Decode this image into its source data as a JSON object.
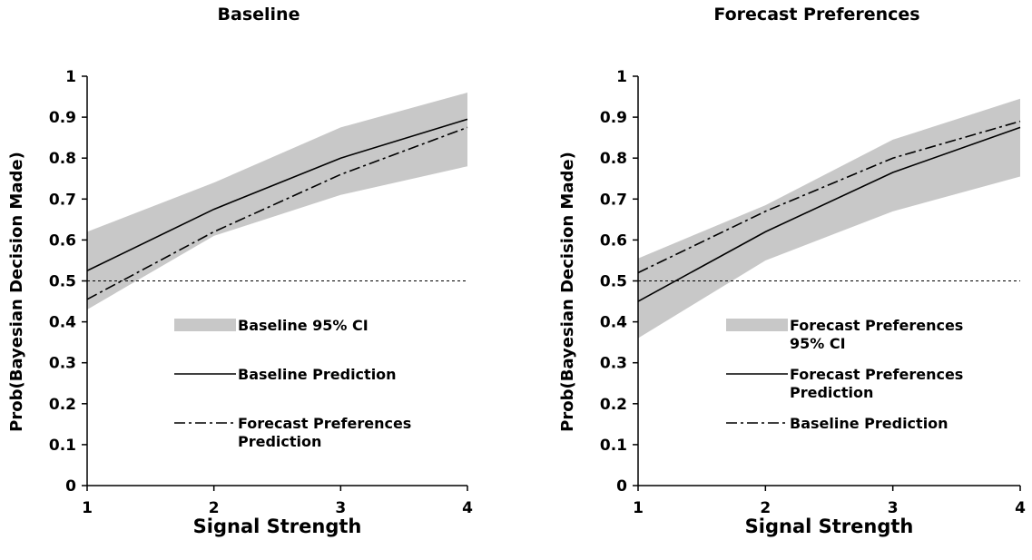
{
  "chart_data": [
    {
      "type": "line",
      "title": "Baseline",
      "xlabel": "Signal Strength",
      "ylabel": "Prob(Bayesian Decision Made)",
      "x": [
        1,
        2,
        3,
        4
      ],
      "xlim": [
        1,
        4
      ],
      "ylim": [
        0,
        1
      ],
      "x_ticks": [
        "1",
        "2",
        "3",
        "4"
      ],
      "y_ticks": [
        "0",
        "0.1",
        "0.2",
        "0.3",
        "0.4",
        "0.5",
        "0.6",
        "0.7",
        "0.8",
        "0.9",
        "1"
      ],
      "reference_line": 0.5,
      "band": {
        "name": "Baseline 95% CI",
        "lower": [
          0.43,
          0.61,
          0.71,
          0.78
        ],
        "upper": [
          0.62,
          0.74,
          0.875,
          0.96
        ],
        "color": "#c8c8c8"
      },
      "series": [
        {
          "name": "Baseline Prediction",
          "style": "solid",
          "values": [
            0.525,
            0.675,
            0.8,
            0.895
          ]
        },
        {
          "name": "Forecast Preferences Prediction",
          "style": "dashdot",
          "values": [
            0.455,
            0.62,
            0.76,
            0.875
          ]
        }
      ],
      "legend": [
        {
          "type": "band",
          "lines": [
            "Baseline 95% CI"
          ]
        },
        {
          "type": "solid",
          "lines": [
            "Baseline Prediction"
          ]
        },
        {
          "type": "dashdot",
          "lines": [
            "Forecast Preferences",
            "Prediction"
          ]
        }
      ],
      "legend_position": "lower-right",
      "grid": false
    },
    {
      "type": "line",
      "title": "Forecast Preferences",
      "xlabel": "Signal Strength",
      "ylabel": "Prob(Bayesian Decision Made)",
      "x": [
        1,
        2,
        3,
        4
      ],
      "xlim": [
        1,
        4
      ],
      "ylim": [
        0,
        1
      ],
      "x_ticks": [
        "1",
        "2",
        "3",
        "4"
      ],
      "y_ticks": [
        "0",
        "0.1",
        "0.2",
        "0.3",
        "0.4",
        "0.5",
        "0.6",
        "0.7",
        "0.8",
        "0.9",
        "1"
      ],
      "reference_line": 0.5,
      "band": {
        "name": "Forecast Preferences 95% CI",
        "lower": [
          0.36,
          0.55,
          0.67,
          0.755
        ],
        "upper": [
          0.555,
          0.685,
          0.845,
          0.945
        ],
        "color": "#c8c8c8"
      },
      "series": [
        {
          "name": "Forecast Preferences Prediction",
          "style": "solid",
          "values": [
            0.45,
            0.62,
            0.765,
            0.875
          ]
        },
        {
          "name": "Baseline Prediction",
          "style": "dashdot",
          "values": [
            0.52,
            0.67,
            0.8,
            0.89
          ]
        }
      ],
      "legend": [
        {
          "type": "band",
          "lines": [
            "Forecast Preferences",
            "95% CI"
          ]
        },
        {
          "type": "solid",
          "lines": [
            "Forecast Preferences",
            "Prediction"
          ]
        },
        {
          "type": "dashdot",
          "lines": [
            "Baseline Prediction"
          ]
        }
      ],
      "legend_position": "lower-right",
      "grid": false
    }
  ]
}
